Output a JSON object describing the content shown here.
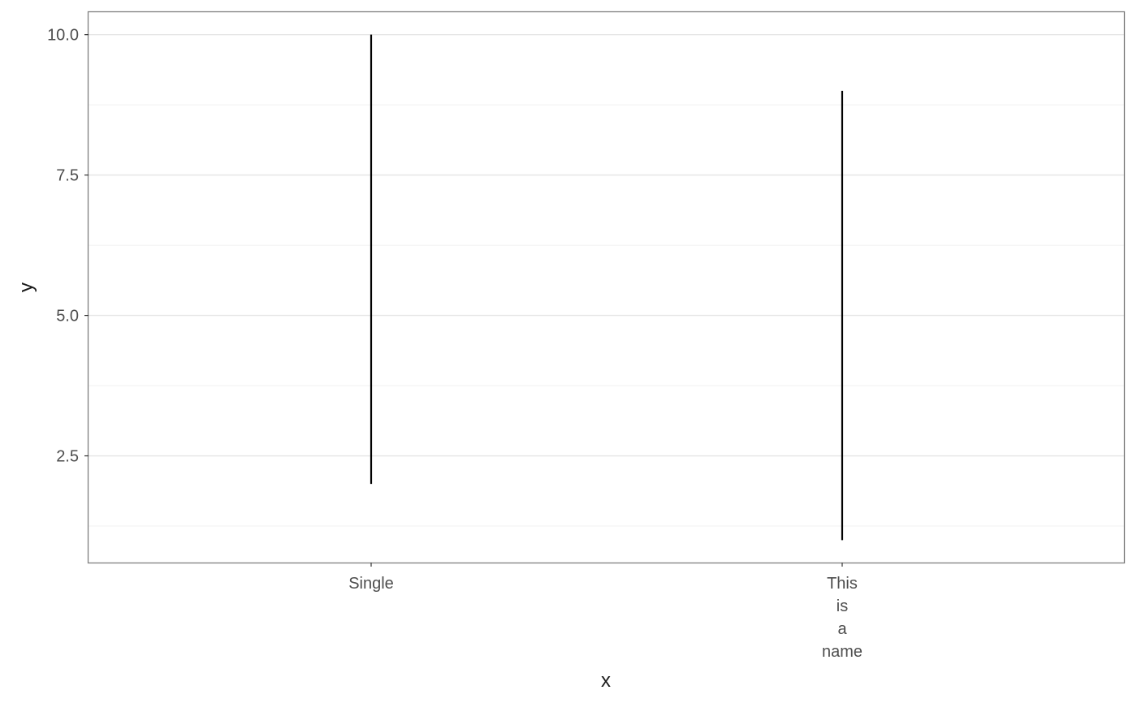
{
  "chart_data": {
    "type": "linerange",
    "title": "",
    "xlabel": "x",
    "ylabel": "y",
    "categories": [
      "Single",
      "This\nis\na\nname"
    ],
    "series": [
      {
        "ymin": [
          2.0,
          1.0
        ],
        "ymax": [
          10.0,
          9.0
        ]
      }
    ],
    "ylim": [
      0.6,
      10.4
    ],
    "yticks": [
      2.5,
      5.0,
      7.5,
      10.0
    ],
    "ytick_labels": [
      "2.5",
      "5.0",
      "7.5",
      "10.0"
    ],
    "grid": true,
    "legend": "none",
    "colors": {
      "range": "#000000",
      "panel_border": "#7f7f7f",
      "grid_major": "#e6e6e6",
      "grid_minor": "#f0f0f0",
      "tick_text": "#4d4d4d",
      "axis_title": "#1a1a1a"
    }
  }
}
